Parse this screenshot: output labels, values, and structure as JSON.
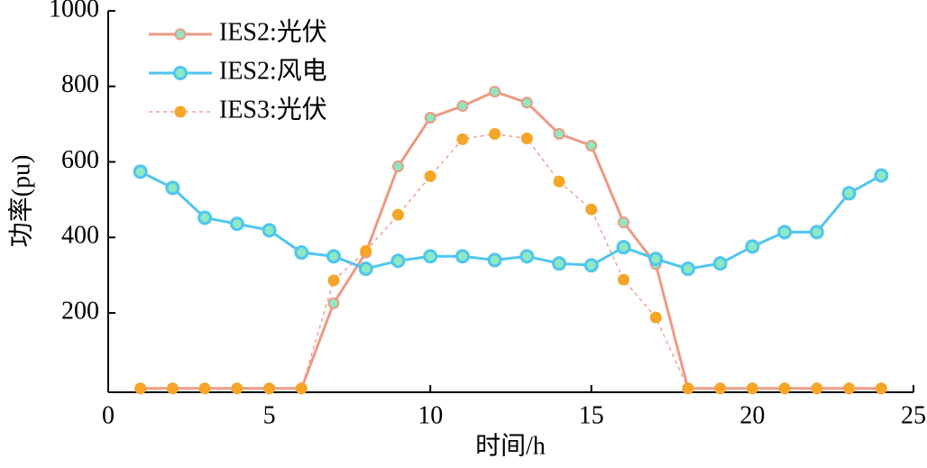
{
  "chart_data": {
    "type": "line",
    "xlabel": "时间/h",
    "ylabel": "功率(pu)",
    "x": [
      1,
      2,
      3,
      4,
      5,
      6,
      7,
      8,
      9,
      10,
      11,
      12,
      13,
      14,
      15,
      16,
      17,
      18,
      19,
      20,
      21,
      22,
      23,
      24
    ],
    "series": [
      {
        "name": "IES2:光伏",
        "color": "#ec9a84",
        "marker_color": "#8ee8c2",
        "style": "solid",
        "values": [
          0,
          0,
          0,
          0,
          0,
          0,
          226,
          360,
          588,
          717,
          748,
          786,
          757,
          674,
          643,
          440,
          329,
          0,
          0,
          0,
          0,
          0,
          0,
          0
        ]
      },
      {
        "name": "IES2:风电",
        "color": "#4fc6ee",
        "marker_color": "#8ee8c2",
        "style": "solid",
        "values": [
          574,
          531,
          452,
          436,
          419,
          360,
          350,
          317,
          338,
          350,
          350,
          340,
          350,
          331,
          326,
          374,
          343,
          317,
          331,
          376,
          414,
          414,
          517,
          564
        ]
      },
      {
        "name": "IES3:光伏",
        "color": "#f0a090",
        "marker_color": "#f5a628",
        "style": "dotted",
        "values": [
          0,
          0,
          0,
          0,
          0,
          0,
          286,
          364,
          460,
          562,
          660,
          674,
          662,
          548,
          474,
          288,
          188,
          0,
          0,
          0,
          0,
          0,
          0,
          0
        ]
      }
    ],
    "xlim": [
      0,
      25
    ],
    "xticks": [
      0,
      5,
      10,
      15,
      20,
      25
    ],
    "ylim": [
      -10,
      1000
    ],
    "yticks": [
      200,
      400,
      600,
      800,
      1000
    ],
    "legend": "upper left"
  }
}
